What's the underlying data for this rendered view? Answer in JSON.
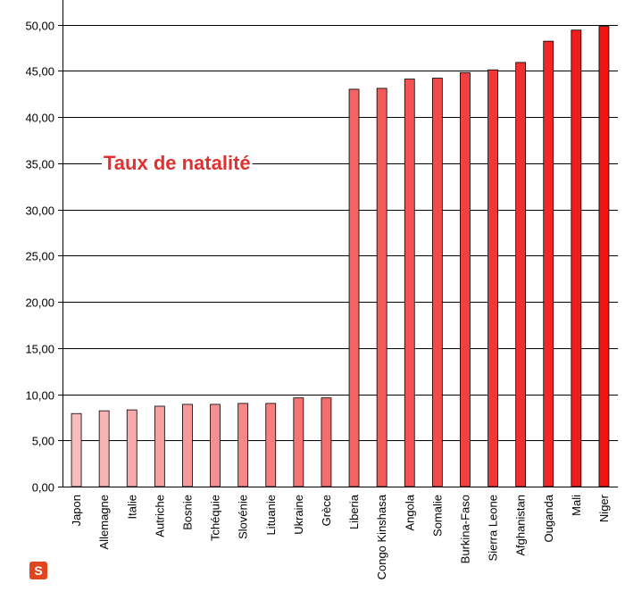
{
  "chart_data": {
    "type": "bar",
    "title": "Taux de natalité",
    "xlabel": "",
    "ylabel": "",
    "ylim": [
      0,
      50
    ],
    "yticks": [
      "0,00",
      "5,00",
      "10,00",
      "15,00",
      "20,00",
      "25,00",
      "30,00",
      "35,00",
      "40,00",
      "45,00",
      "50,00"
    ],
    "grid": true,
    "categories": [
      "Japon",
      "Allemagne",
      "Italie",
      "Autriche",
      "Bosnie",
      "Tchéquie",
      "Slovénie",
      "Lituanie",
      "Ukraine",
      "Grèce",
      "Liberia",
      "Congo Kinshasa",
      "Angola",
      "Somalie",
      "Burkina-Faso",
      "Sierra Leone",
      "Afghanistan",
      "Ouganda",
      "Mali",
      "Niger"
    ],
    "values": [
      7.9,
      8.2,
      8.3,
      8.7,
      8.9,
      8.9,
      9.0,
      9.0,
      9.6,
      9.6,
      43.0,
      43.1,
      44.1,
      44.2,
      44.8,
      45.1,
      45.9,
      48.2,
      49.4,
      49.8
    ],
    "colors": {
      "low": "#f8bcbc",
      "high": "#f01414",
      "title": "#e03030",
      "grid": "#000000"
    }
  },
  "logo": {
    "icon": "s-logo-icon",
    "glyph": "S"
  }
}
